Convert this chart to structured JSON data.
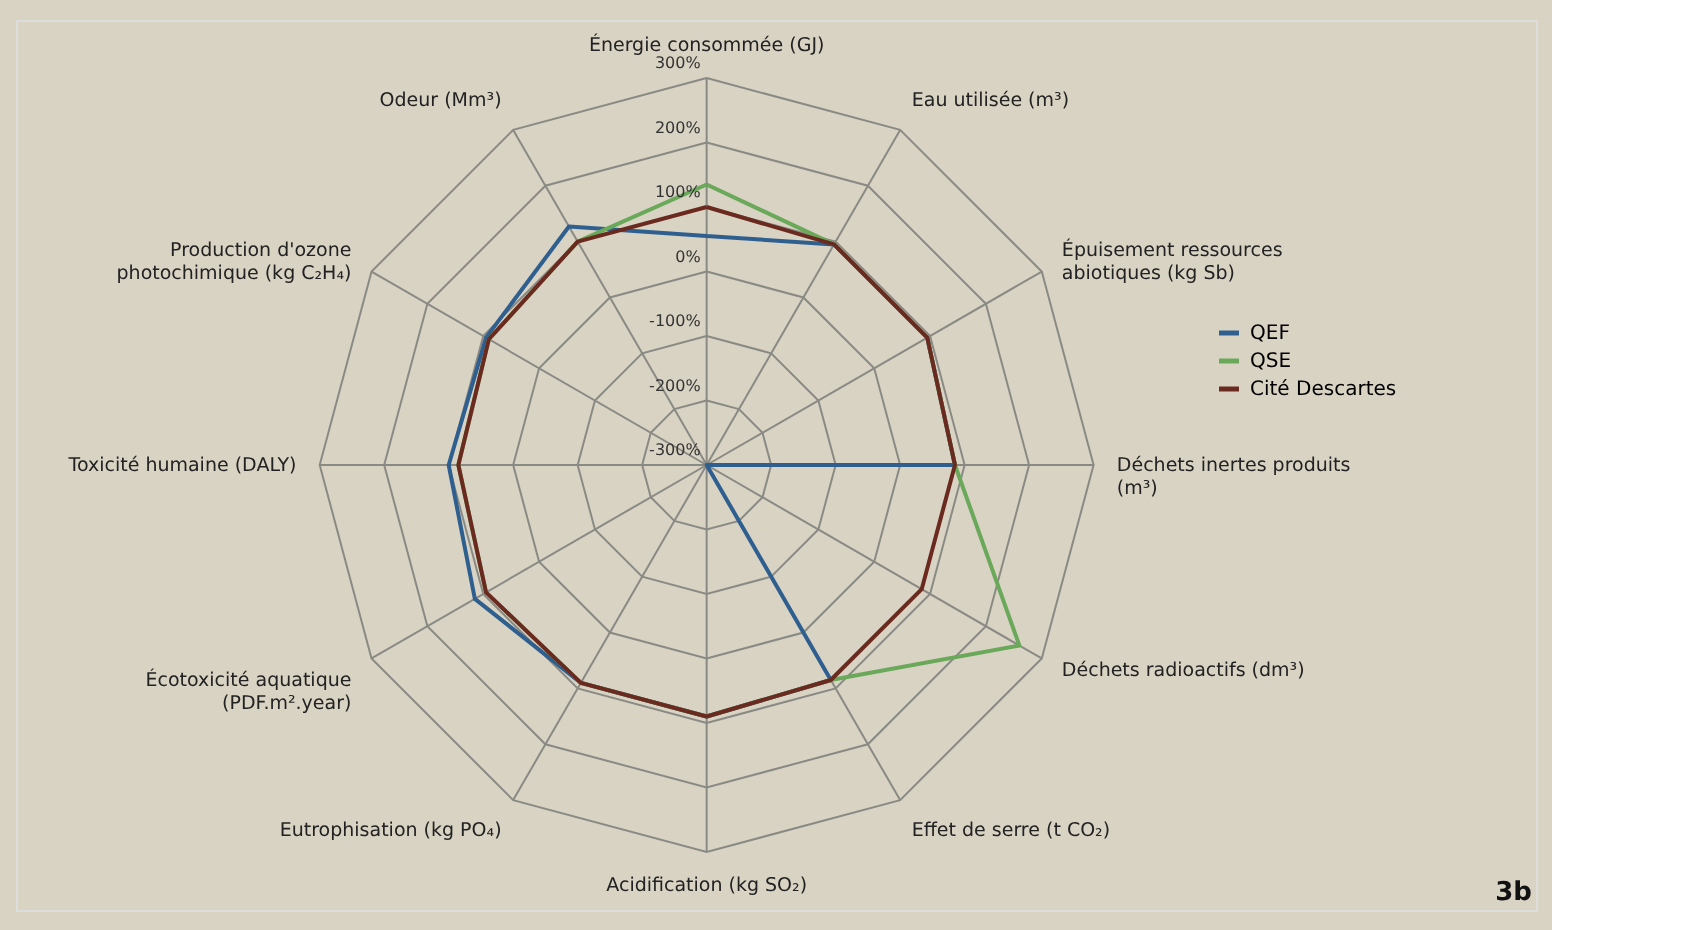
{
  "chart_data": {
    "type": "radar",
    "categories": [
      "Énergie consommée (GJ)",
      "Eau utilisée (m³)",
      "Épuisement ressources abiotiques (kg Sb)",
      "Déchets inertes produits (m³)",
      "Déchets radioactifs (dm³)",
      "Effet de serre (t CO₂)",
      "Acidification (kg SO₂)",
      "Eutrophisation (kg PO₄)",
      "Écotoxicité aquatique (PDF.m².year)",
      "Toxicité humaine (DALY)",
      "Production d'ozone photochimique (kg C₂H₄)",
      "Odeur (Mm³)"
    ],
    "series": [
      {
        "name": "QEF",
        "color": "#2f5f8f",
        "values": [
          55,
          95,
          95,
          85,
          -300,
          85,
          90,
          90,
          115,
          100,
          95,
          127
        ]
      },
      {
        "name": "QSE",
        "color": "#6aa85a",
        "values": [
          135,
          95,
          95,
          85,
          260,
          85,
          90,
          90,
          95,
          85,
          90,
          100
        ]
      },
      {
        "name": "Cité Descartes",
        "color": "#6b2a1f",
        "values": [
          100,
          95,
          95,
          85,
          85,
          85,
          90,
          90,
          95,
          85,
          90,
          100
        ]
      }
    ],
    "ylim": [
      -300,
      300
    ],
    "yticks": [
      {
        "value": -300,
        "label": "-300%"
      },
      {
        "value": -200,
        "label": "-200%"
      },
      {
        "value": -100,
        "label": "-100%"
      },
      {
        "value": 0,
        "label": "0%"
      },
      {
        "value": 100,
        "label": "100%"
      },
      {
        "value": 200,
        "label": "200%"
      },
      {
        "value": 300,
        "label": "300%"
      }
    ],
    "grid": true,
    "legend": "right",
    "marker": "none",
    "line_style": "solid",
    "annotations": [
      "3b"
    ]
  }
}
